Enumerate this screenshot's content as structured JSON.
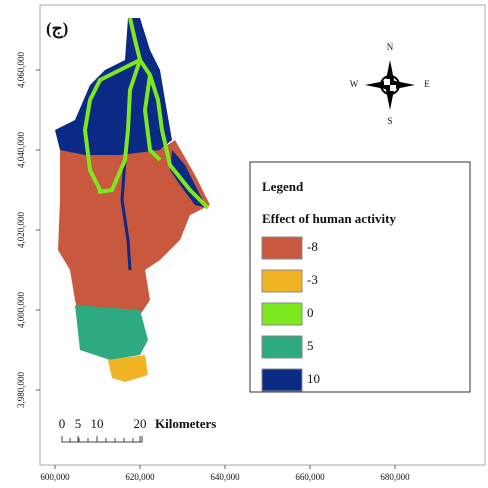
{
  "map": {
    "panel_label": "(ج)",
    "yticks": [
      {
        "value": 4060000,
        "label": "4,060,000"
      },
      {
        "value": 4040000,
        "label": "4,040,000"
      },
      {
        "value": 4020000,
        "label": "4,020,000"
      },
      {
        "value": 4000000,
        "label": "4,000,000"
      },
      {
        "value": 3980000,
        "label": "3,980,000"
      }
    ],
    "xticks": [
      {
        "value": 600000,
        "label": "600,000"
      },
      {
        "value": 620000,
        "label": "620,000"
      },
      {
        "value": 640000,
        "label": "640,000"
      },
      {
        "value": 660000,
        "label": "660,000"
      },
      {
        "value": 680000,
        "label": "680,000"
      }
    ],
    "compass": {
      "n": "N",
      "s": "S",
      "e": "E",
      "w": "W"
    },
    "legend": {
      "title": "Legend",
      "subtitle": "Effect of human activity",
      "items": [
        {
          "label": -8,
          "color": "#c8583e"
        },
        {
          "label": -3,
          "color": "#f0b323"
        },
        {
          "label": 0,
          "color": "#7ee81e"
        },
        {
          "label": 5,
          "color": "#2eaa82"
        },
        {
          "label": 10,
          "color": "#0b2a86"
        }
      ]
    },
    "scale_bar": {
      "labels": [
        0,
        5,
        10,
        20
      ],
      "unit": "Kilometers"
    }
  }
}
